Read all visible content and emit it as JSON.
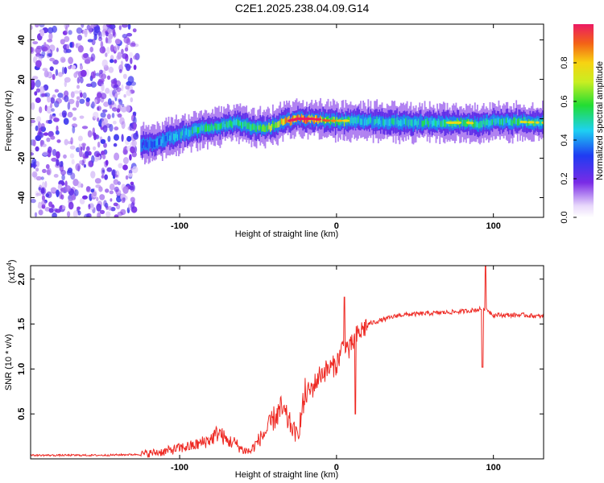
{
  "title": "C2E1.2025.238.04.09.G14",
  "colors": {
    "snr_line": "#ee2a24",
    "ridge_core": "#e82828",
    "noise": "#7a2be6"
  },
  "chart_data": [
    {
      "type": "heatmap",
      "xlabel": "Height of straight line (km)",
      "ylabel": "Frequency (Hz)",
      "xlim": [
        -195,
        132
      ],
      "ylim": [
        -50,
        48
      ],
      "xticks": [
        -100,
        0,
        100
      ],
      "yticks": [
        -40,
        -20,
        0,
        20,
        40
      ],
      "colorbar": {
        "label": "Normalized spectral amplitude",
        "range": [
          0,
          1
        ],
        "ticks": [
          "0.0",
          "0.2",
          "0.4",
          "0.6",
          "0.8"
        ],
        "tick_values": [
          0.0,
          0.2,
          0.4,
          0.6,
          0.8
        ]
      },
      "ridge": {
        "x": [
          -125,
          -115,
          -105,
          -95,
          -85,
          -75,
          -65,
          -55,
          -45,
          -35,
          -25,
          -15,
          -5,
          5,
          15,
          30,
          50,
          70,
          85,
          90,
          100,
          115,
          132
        ],
        "freq": [
          -13,
          -12,
          -9,
          -7,
          -5,
          -4,
          -2,
          -4,
          -5,
          -2,
          0,
          0,
          -1,
          -1,
          -1,
          -1.5,
          -2,
          -2,
          -2,
          -3,
          -1,
          -1.5,
          -2
        ],
        "amplitude": [
          0.35,
          0.4,
          0.45,
          0.5,
          0.55,
          0.55,
          0.5,
          0.6,
          0.65,
          0.8,
          0.95,
          0.85,
          0.7,
          0.6,
          0.5,
          0.5,
          0.5,
          0.55,
          0.6,
          0.5,
          0.55,
          0.55,
          0.6
        ]
      },
      "noise_region": {
        "x_range": [
          -195,
          -127
        ],
        "amplitude": 0.2
      }
    },
    {
      "type": "line",
      "xlabel": "Height of straight line (km)",
      "ylabel": "SNR (10 * v/v)",
      "y_multiplier": "(x10",
      "y_multiplier_exp": "4",
      "xlim": [
        -195,
        132
      ],
      "ylim": [
        0,
        2.15
      ],
      "xticks": [
        -100,
        0,
        100
      ],
      "yticks": [
        0.5,
        1.0,
        1.5,
        2.0
      ],
      "ytick_labels": [
        "0.5",
        "1.0",
        "1.5",
        "2.0"
      ],
      "series": [
        {
          "x": [
            -195,
            -150,
            -125,
            -110,
            -100,
            -90,
            -80,
            -75,
            -70,
            -65,
            -60,
            -55,
            -50,
            -45,
            -40,
            -35,
            -30,
            -25,
            -20,
            -15,
            -10,
            -5,
            0,
            5,
            8,
            12,
            20,
            30,
            40,
            60,
            80,
            90,
            95,
            100,
            110,
            120,
            132
          ],
          "y": [
            0.04,
            0.04,
            0.05,
            0.08,
            0.12,
            0.15,
            0.22,
            0.3,
            0.2,
            0.18,
            0.1,
            0.08,
            0.2,
            0.3,
            0.45,
            0.55,
            0.4,
            0.25,
            0.7,
            0.8,
            0.95,
            1.0,
            1.05,
            1.3,
            1.2,
            1.35,
            1.5,
            1.55,
            1.6,
            1.62,
            1.64,
            1.66,
            1.68,
            1.6,
            1.6,
            1.6,
            1.58
          ],
          "spikes": [
            {
              "x": 5,
              "y": 1.8
            },
            {
              "x": 12,
              "y": 0.5
            },
            {
              "x": 93,
              "y": 1.02
            },
            {
              "x": 95,
              "y": 2.15
            }
          ]
        }
      ]
    }
  ]
}
